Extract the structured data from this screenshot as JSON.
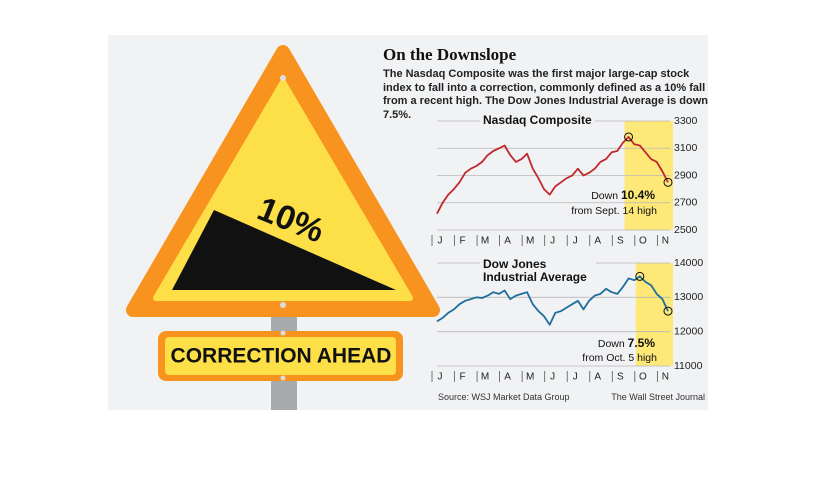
{
  "sign": {
    "percent": "10%",
    "banner": "CORRECTION AHEAD"
  },
  "header": {
    "title": "On the Downslope",
    "subtitle": "The Nasdaq Composite was the first major large-cap stock index to fall into a correction, commonly defined as a 10% fall from a recent high. The Dow Jones Industrial Average is down 7.5%."
  },
  "chart_data": [
    {
      "type": "line",
      "title": "Nasdaq Composite",
      "color": "#c0282d",
      "categories": [
        "J",
        null,
        null,
        null,
        "F",
        null,
        null,
        null,
        "M",
        null,
        null,
        null,
        "A",
        null,
        null,
        null,
        "M",
        null,
        null,
        null,
        "J",
        null,
        null,
        null,
        "J",
        null,
        null,
        null,
        "A",
        null,
        null,
        null,
        "S",
        null,
        null,
        null,
        "O",
        null,
        null,
        null,
        "N",
        null
      ],
      "values": [
        2620,
        2700,
        2760,
        2800,
        2850,
        2920,
        2950,
        2970,
        3000,
        3050,
        3080,
        3100,
        3120,
        3050,
        3000,
        3020,
        3060,
        2950,
        2880,
        2800,
        2760,
        2820,
        2850,
        2880,
        2900,
        2950,
        2900,
        2920,
        2950,
        3000,
        3020,
        3070,
        3080,
        3140,
        3183,
        3130,
        3120,
        3070,
        3020,
        3000,
        2930,
        2850
      ],
      "ylim": [
        2500,
        3300
      ],
      "yticks": [
        2500,
        2700,
        2900,
        3100,
        3300
      ],
      "grid": true,
      "annotation": {
        "prefix": "Down",
        "change": "10.4%",
        "note": "from Sept. 14 high"
      }
    },
    {
      "type": "line",
      "title": "Dow Jones Industrial Average",
      "color": "#1f6e9c",
      "categories": [
        "J",
        null,
        null,
        null,
        "F",
        null,
        null,
        null,
        "M",
        null,
        null,
        null,
        "A",
        null,
        null,
        null,
        "M",
        null,
        null,
        null,
        "J",
        null,
        null,
        null,
        "J",
        null,
        null,
        null,
        "A",
        null,
        null,
        null,
        "S",
        null,
        null,
        null,
        "O",
        null,
        null,
        null,
        "N",
        null
      ],
      "values": [
        12300,
        12400,
        12550,
        12650,
        12800,
        12900,
        12950,
        13000,
        12980,
        13050,
        13150,
        13100,
        13200,
        12950,
        13050,
        13100,
        13150,
        12800,
        12600,
        12450,
        12200,
        12550,
        12600,
        12700,
        12800,
        12900,
        12650,
        12900,
        13050,
        13100,
        13250,
        13150,
        13100,
        13300,
        13550,
        13500,
        13610,
        13450,
        13350,
        13100,
        12950,
        12600
      ],
      "ylim": [
        11000,
        14000
      ],
      "yticks": [
        11000,
        12000,
        13000,
        14000
      ],
      "grid": true,
      "annotation": {
        "prefix": "Down",
        "change": "7.5%",
        "note": "from Oct. 5 high"
      }
    }
  ],
  "footer": {
    "source": "Source: WSJ Market Data Group",
    "credit": "The Wall Street Journal"
  }
}
